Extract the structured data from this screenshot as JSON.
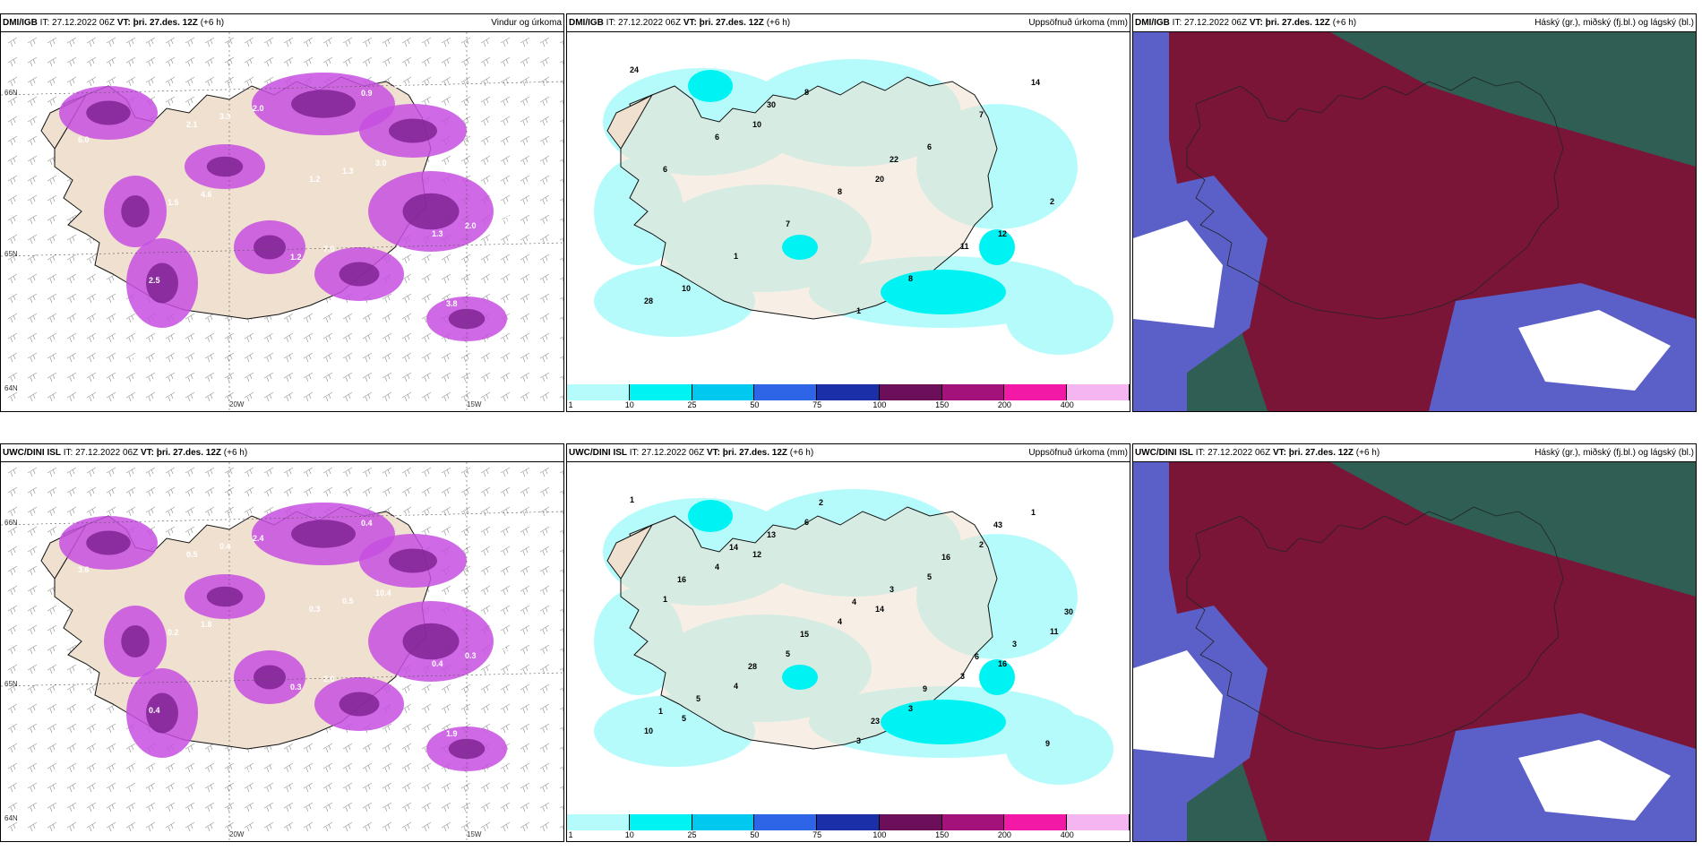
{
  "panels": [
    {
      "model": "DMI/IGB",
      "init": "IT: 27.12.2022 06Z",
      "vt_label": "VT:",
      "vt": "þri. 27.des. 12Z",
      "lead": "(+6 h)",
      "field": "Vindur og úrkoma",
      "kind": "wind",
      "labels": [
        "3.4",
        "2.1",
        "1.2",
        "1.3",
        "1.5",
        "1.1",
        "0.9",
        "1.4",
        "1.5",
        "1.2",
        "1.1",
        "1.3",
        "3.3",
        "1.3",
        "2.0",
        "2.5",
        "2.8",
        "3.0",
        "6.0",
        "4.6",
        "7.9",
        "3.8",
        "1.7",
        "2.0",
        "3.0",
        "1.8"
      ],
      "coords": [
        "66N",
        "65N",
        "64N",
        "20W",
        "15W"
      ]
    },
    {
      "model": "DMI/IGB",
      "init": "IT: 27.12.2022 06Z",
      "vt_label": "VT:",
      "vt": "þri. 27.des. 12Z",
      "lead": "(+6 h)",
      "field": "Uppsöfnuð úrkoma (mm)",
      "kind": "precip",
      "labels": [
        "24",
        "10",
        "20",
        "12",
        "10",
        "8",
        "6",
        "2",
        "1",
        "1",
        "7",
        "6",
        "7",
        "8",
        "14",
        "6",
        "8",
        "11",
        "28",
        "30",
        "22"
      ]
    },
    {
      "model": "DMI/IGB",
      "init": "IT: 27.12.2022 06Z",
      "vt_label": "VT:",
      "vt": "þri. 27.des. 12Z",
      "lead": "(+6 h)",
      "field": "Háský (gr.), miðský (fj.bl.) og lágský (bl.)",
      "kind": "cloud"
    },
    {
      "model": "UWC/DINI ISL",
      "init": "IT: 27.12.2022 06Z",
      "vt_label": "VT:",
      "vt": "þri. 27.des. 12Z",
      "lead": "(+6 h)",
      "field": "",
      "kind": "wind",
      "labels": [
        "0.5",
        "0.5",
        "0.3",
        "0.4",
        "0.3",
        "0.5",
        "0.4",
        "0.5",
        "0.2",
        "0.3",
        "0.4",
        "0.6",
        "0.4",
        "0.5",
        "0.3",
        "0.4",
        "0.5",
        "3.5",
        "3.6",
        "1.8",
        "2.0",
        "1.9",
        "4.8",
        "2.4",
        "10.4",
        "11.9"
      ],
      "coords": [
        "66N",
        "65N",
        "64N",
        "20W",
        "15W"
      ]
    },
    {
      "model": "UWC/DINI ISL",
      "init": "IT: 27.12.2022 06Z",
      "vt_label": "VT:",
      "vt": "þri. 27.des. 12Z",
      "lead": "(+6 h)",
      "field": "Uppsöfnuð úrkoma (mm)",
      "kind": "precip",
      "labels": [
        "1",
        "12",
        "14",
        "16",
        "5",
        "6",
        "5",
        "11",
        "4",
        "3",
        "2",
        "1",
        "5",
        "3",
        "1",
        "4",
        "4",
        "3",
        "10",
        "13",
        "3",
        "3",
        "5",
        "2",
        "16",
        "30",
        "28",
        "23",
        "43",
        "16",
        "15",
        "9",
        "9",
        "14",
        "4",
        "6",
        "1"
      ]
    },
    {
      "model": "UWC/DINI ISL",
      "init": "IT: 27.12.2022 06Z",
      "vt_label": "VT:",
      "vt": "þri. 27.des. 12Z",
      "lead": "(+6 h)",
      "field": "Háský (gr.), miðský (fj.bl.) og lágský (bl.)",
      "kind": "cloud"
    }
  ],
  "legend": {
    "ticks": [
      "1",
      "10",
      "25",
      "50",
      "75",
      "100",
      "150",
      "200",
      "400"
    ],
    "colors": [
      "#b5fbfb",
      "#00f3f3",
      "#00c8ef",
      "#2e64e6",
      "#1a2fa8",
      "#6b0f5a",
      "#a3127a",
      "#f219a7",
      "#f5b5f0"
    ]
  },
  "colors": {
    "land": "#f0e0d0",
    "coast": "#111111",
    "precip_light": "#b5fbfb",
    "precip_mid": "#00f3f3",
    "wind_precip": "#c74fe0",
    "wind_precip_dark": "#7a1f8f",
    "cloud_high": "#2f5e55",
    "cloud_mid": "#7a1538",
    "cloud_low": "#5b60c8"
  }
}
